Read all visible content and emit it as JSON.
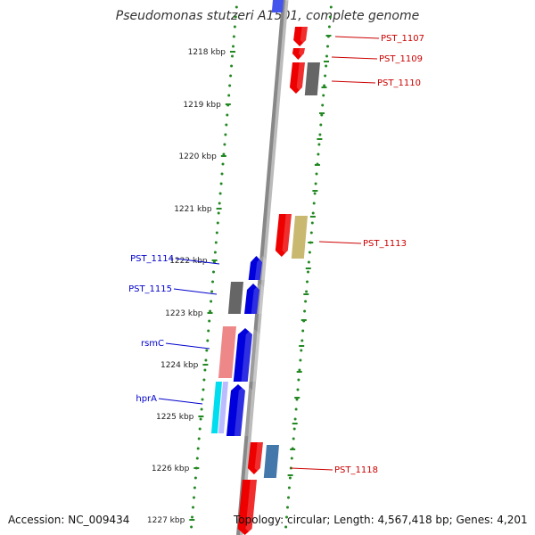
{
  "title": "Pseudomonas stutzeri A1501, complete genome",
  "accession_text": "Accession: NC_009434",
  "summary_text": "Topology: circular; Length: 4,567,418 bp; Genes: 4,201",
  "scale_labels": [
    "1218 kbp",
    "1219 kbp",
    "1220 kbp",
    "1221 kbp",
    "1222 kbp",
    "1223 kbp",
    "1224 kbp",
    "1225 kbp",
    "1226 kbp",
    "1227 kbp"
  ],
  "colors": {
    "backbone": "#888888",
    "dots": "#228822",
    "forward_red": "#ee0000",
    "reverse_blue": "#0000dd",
    "gray": "#666666",
    "khaki": "#c8b870",
    "pink": "#ee8888",
    "cyan": "#00ddee",
    "steel": "#4477aa",
    "label_right": "#cc0000",
    "label_left": "#0000cc"
  },
  "genes_right": [
    {
      "name": "PST_1107",
      "color_key": "forward_red"
    },
    {
      "name": "PST_1109",
      "color_key": "forward_red"
    },
    {
      "name": "PST_1110",
      "color_key": "forward_red"
    },
    {
      "name": "PST_1113",
      "color_key": "forward_red"
    },
    {
      "name": "PST_1118",
      "color_key": "forward_red"
    }
  ],
  "genes_left": [
    {
      "name": "PST_1114",
      "color_key": "reverse_blue"
    },
    {
      "name": "PST_1115",
      "color_key": "reverse_blue"
    },
    {
      "name": "rsmC",
      "color_key": "reverse_blue"
    },
    {
      "name": "hprA",
      "color_key": "reverse_blue"
    }
  ]
}
